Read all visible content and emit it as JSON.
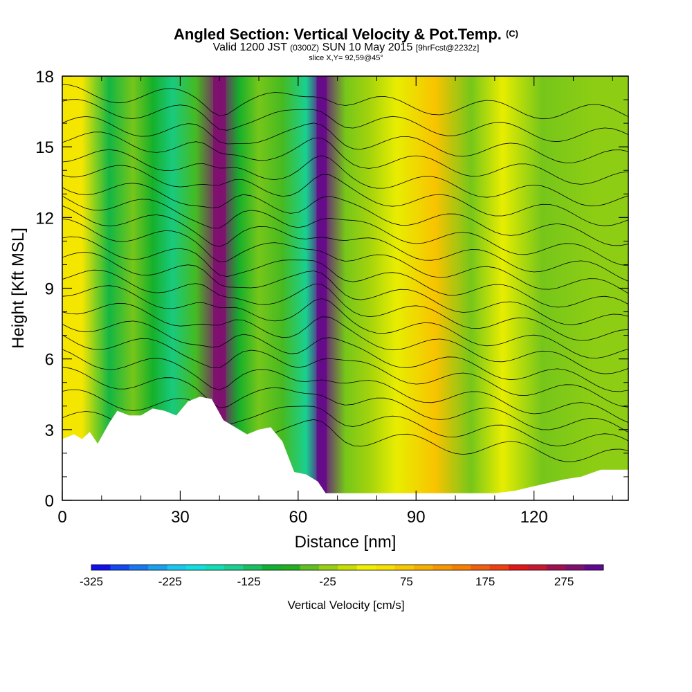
{
  "title": "Angled Section: Vertical Velocity & Pot.Temp.",
  "title_tag": "(C)",
  "subtitle": {
    "valid": "Valid 1200 JST",
    "zulu": "(0300Z)",
    "date": "SUN 10 May 2015",
    "forecast": "[9hrFcst@2232z]"
  },
  "slice_label": "slice X,Y= 92,59@45°",
  "chart_data": {
    "type": "heatmap",
    "xlabel": "Distance [nm]",
    "ylabel": "Height [Kft MSL]",
    "xlim": [
      0,
      144
    ],
    "ylim": [
      0,
      18
    ],
    "x_ticks": [
      "0",
      "30",
      "60",
      "90",
      "120"
    ],
    "y_ticks": [
      "0",
      "3",
      "6",
      "9",
      "12",
      "15",
      "18"
    ],
    "colorbar_label": "Vertical Velocity [cm/s]",
    "colorbar_ticks": [
      "-325",
      "-225",
      "-125",
      "-25",
      "75",
      "175",
      "275"
    ],
    "colorbar_levels": [
      -325,
      -300,
      -275,
      -250,
      -225,
      -200,
      -175,
      -150,
      -125,
      -100,
      -75,
      -50,
      -25,
      0,
      25,
      50,
      75,
      100,
      125,
      150,
      175,
      200,
      225,
      250,
      275,
      300,
      325
    ],
    "colorbar_colors": [
      "#1010ee",
      "#1448f0",
      "#1878f0",
      "#1aa0f0",
      "#18c8f0",
      "#10e0e0",
      "#10e0b8",
      "#18d090",
      "#18c060",
      "#10b030",
      "#20b020",
      "#60c020",
      "#98d010",
      "#c8e000",
      "#f0f000",
      "#f8e000",
      "#f8c800",
      "#f8b000",
      "#f89800",
      "#f88000",
      "#f06010",
      "#f04010",
      "#e01818",
      "#c81830",
      "#a01050",
      "#801070",
      "#600890"
    ],
    "velocity_band_centers_nm": [
      5,
      12,
      18,
      23,
      28,
      34,
      40,
      45,
      50,
      56,
      62,
      66,
      72,
      78,
      85,
      95,
      104,
      112,
      122,
      135
    ],
    "velocity_band_values_cms": [
      40,
      -110,
      -40,
      -90,
      -140,
      -60,
      300,
      -90,
      -40,
      -60,
      -150,
      320,
      -40,
      -20,
      20,
      80,
      -40,
      20,
      -40,
      -30
    ],
    "terrain_nm": [
      0,
      3,
      5,
      7,
      9,
      12,
      14,
      17,
      20,
      23,
      26,
      29,
      32,
      35,
      38,
      41,
      44,
      47,
      50,
      53,
      56,
      59,
      62,
      65,
      67,
      69,
      72,
      80,
      90,
      100,
      110,
      115,
      120,
      128,
      132,
      137,
      144
    ],
    "terrain_kft": [
      2.6,
      2.8,
      2.6,
      2.9,
      2.4,
      3.3,
      3.8,
      3.6,
      3.6,
      3.9,
      3.8,
      3.6,
      4.2,
      4.4,
      4.3,
      3.4,
      3.1,
      2.8,
      3.0,
      3.1,
      2.5,
      1.2,
      1.1,
      0.8,
      0.3,
      0.3,
      0.3,
      0.3,
      0.3,
      0.3,
      0.3,
      0.4,
      0.6,
      0.9,
      1.0,
      1.3,
      1.3
    ],
    "theta_isolines_kft_at_left": [
      3.5,
      4.4,
      5.3,
      6.1,
      6.9,
      7.6,
      8.3,
      9.0,
      9.6,
      10.3,
      10.9,
      11.6,
      12.2,
      12.8,
      13.4,
      14.1,
      14.7,
      15.4,
      16.0,
      16.7,
      17.3
    ],
    "theta_isolines_kft_at_right": [
      1.8,
      2.4,
      3.0,
      3.6,
      4.3,
      4.9,
      5.6,
      6.2,
      6.9,
      7.5,
      8.2,
      8.9,
      9.6,
      10.3,
      11.1,
      11.9,
      12.7,
      13.6,
      14.5,
      15.4,
      16.4
    ],
    "grid": false,
    "legend": "bottom"
  }
}
